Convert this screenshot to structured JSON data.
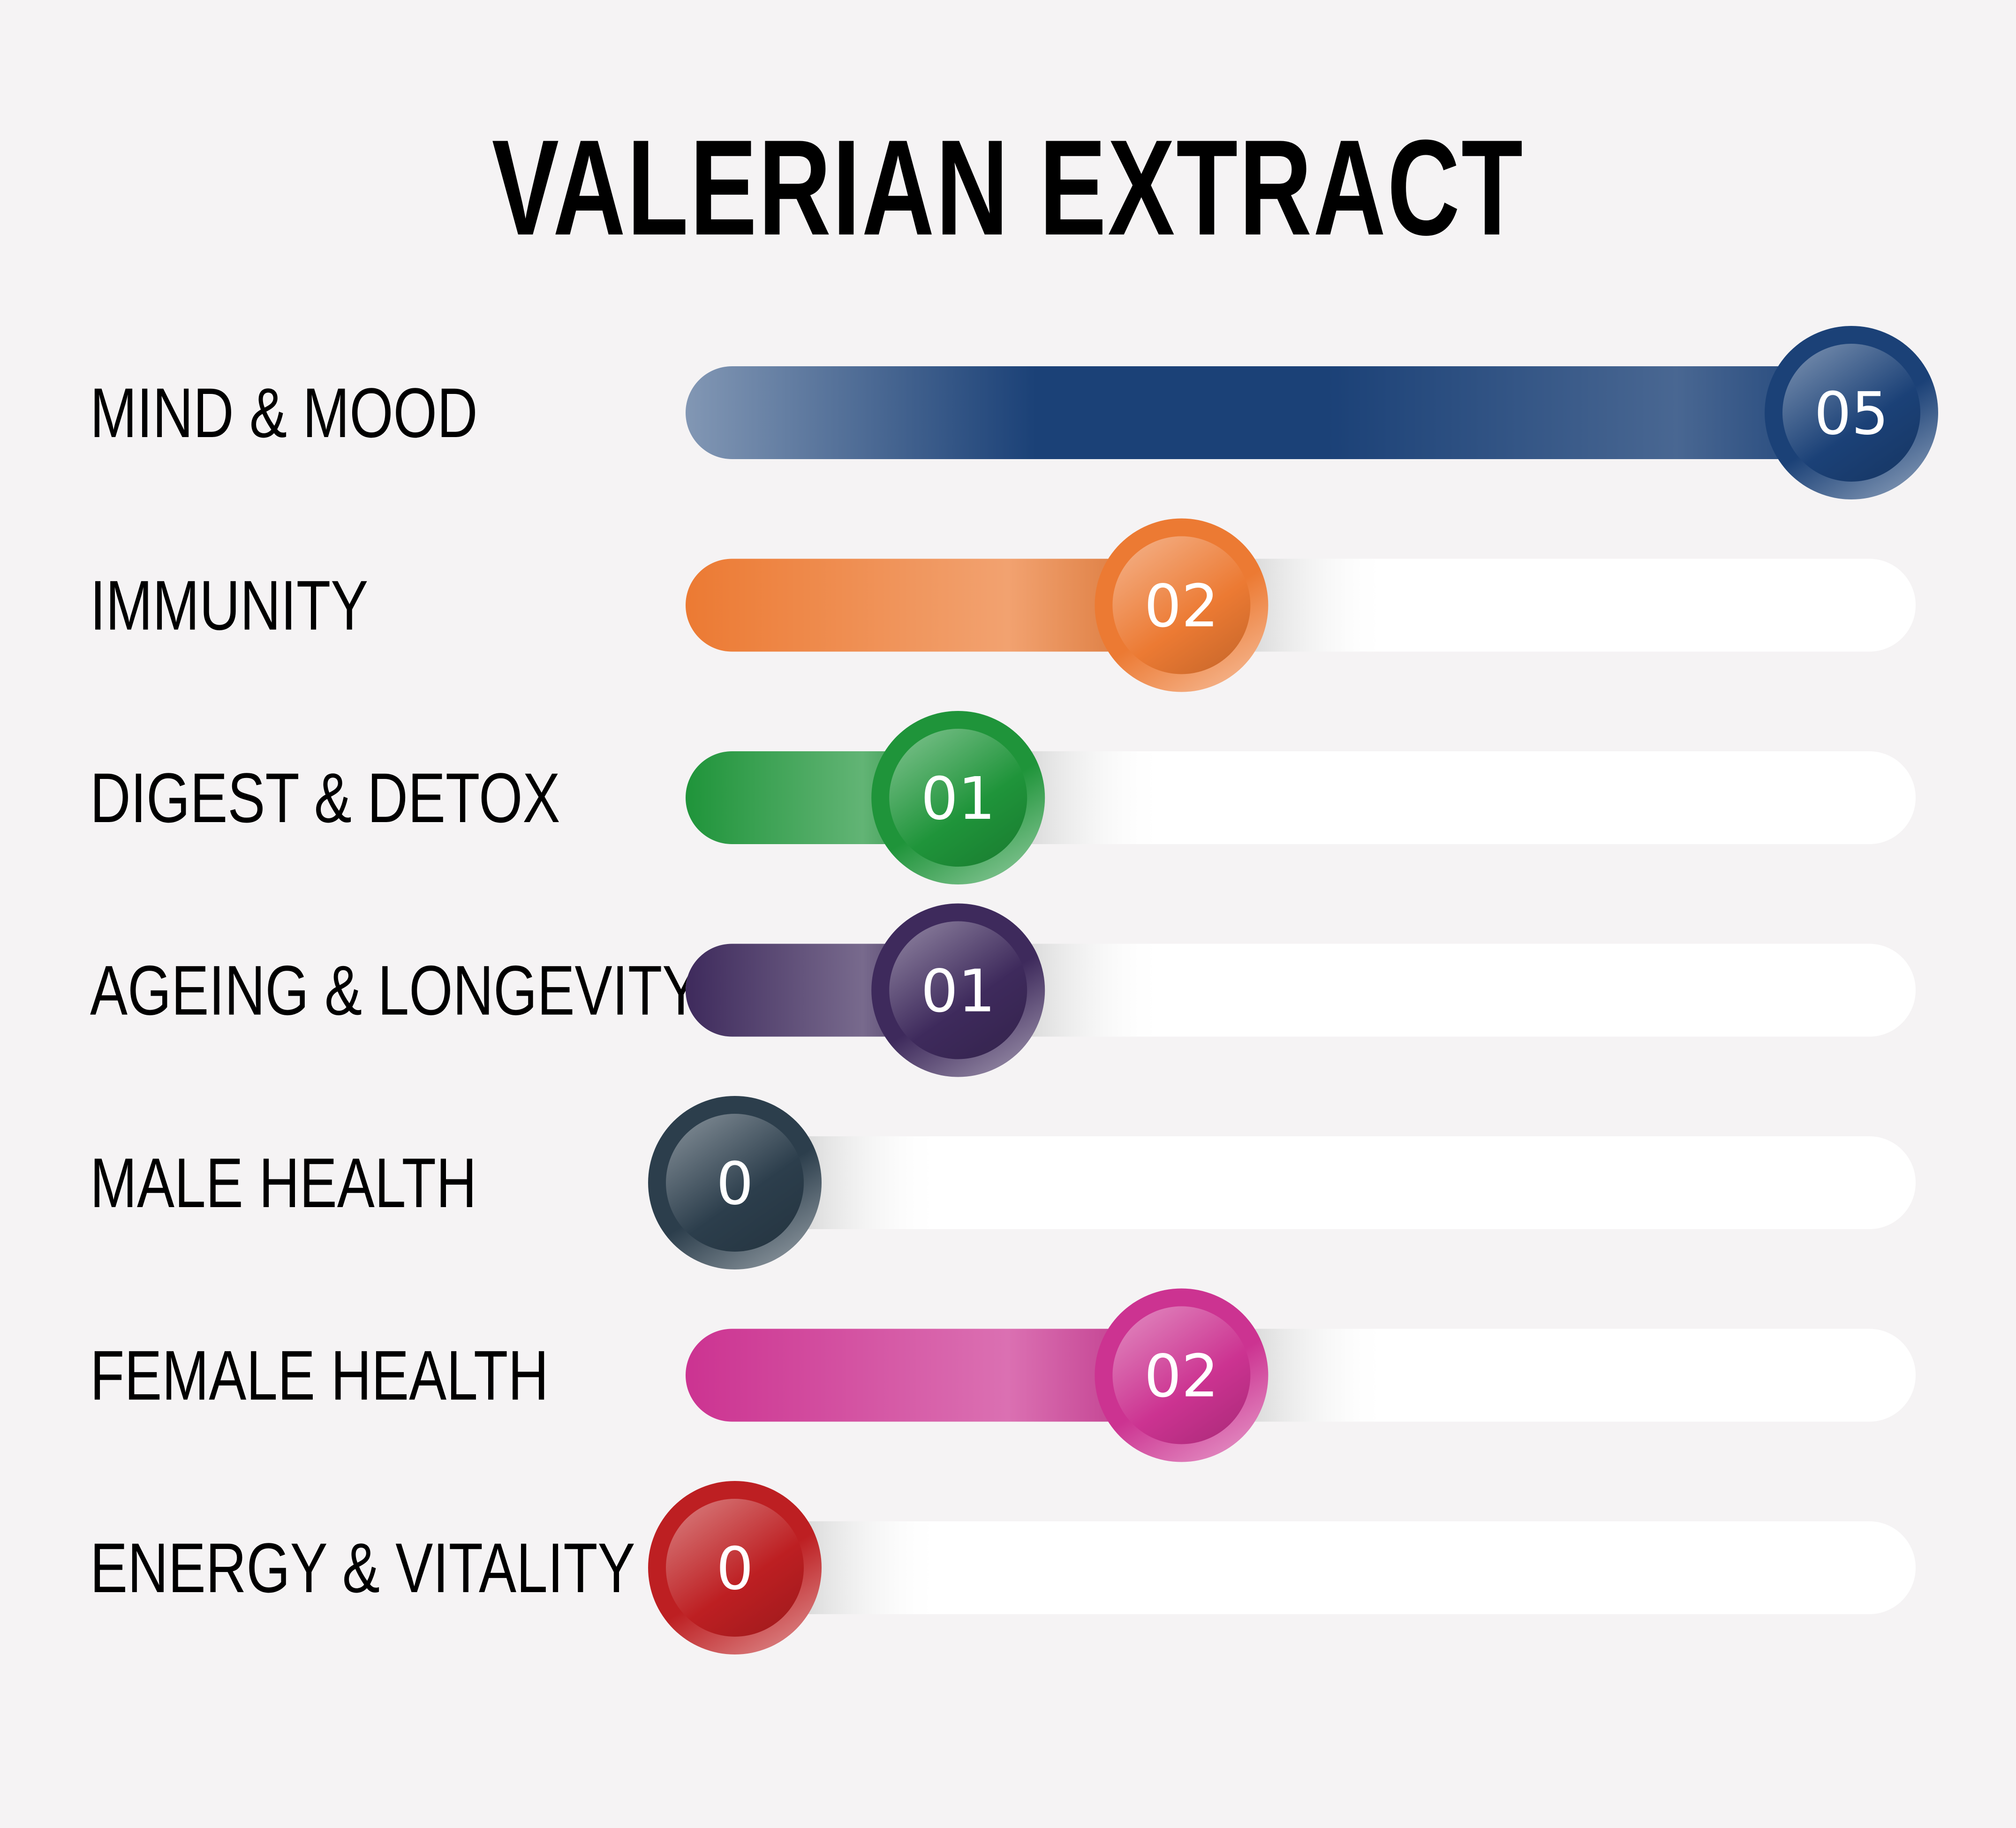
{
  "chart_data": {
    "type": "bar",
    "title": "VALERIAN EXTRACT",
    "xlabel": "",
    "ylabel": "",
    "xlim": [
      0,
      5
    ],
    "grid": false,
    "legend": "none",
    "categories": [
      "MIND & MOOD",
      "IMMUNITY",
      "DIGEST & DETOX",
      "AGEING & LONGEVITY",
      "MALE HEALTH",
      "FEMALE HEALTH",
      "ENERGY & VITALITY"
    ],
    "values": [
      5,
      2,
      1,
      1,
      0,
      2,
      0
    ],
    "value_labels": [
      "05",
      "02",
      "01",
      "01",
      "0",
      "02",
      "0"
    ],
    "colors": [
      "#1b4177",
      "#ec7a33",
      "#1f943a",
      "#3e2a5c",
      "#2c3e4c",
      "#cc3391",
      "#bd1f22"
    ],
    "track_color": "#ffffff",
    "background": "#f5f3f4"
  }
}
